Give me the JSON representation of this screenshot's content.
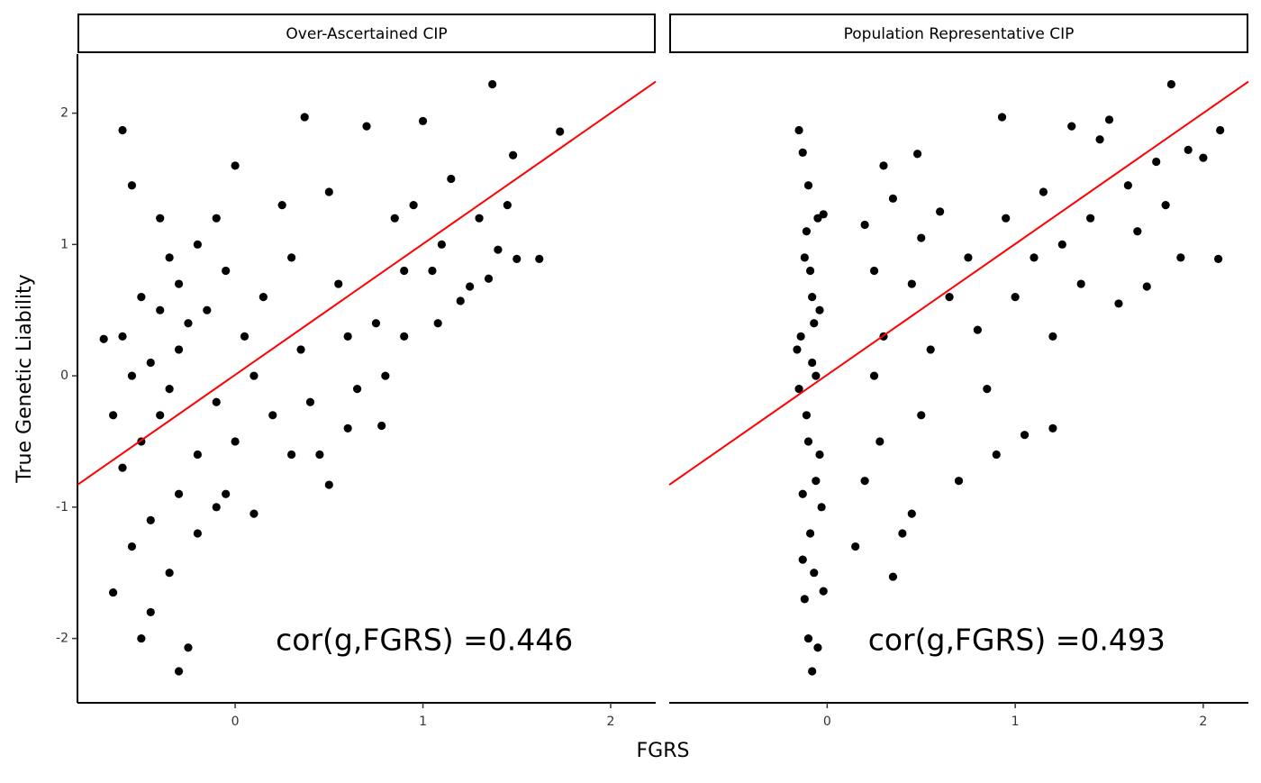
{
  "chart_data": {
    "type": "scatter",
    "xlabel": "FGRS",
    "ylabel": "True Genetic Liability",
    "xlim": [
      -0.84,
      2.24
    ],
    "ylim": [
      -2.49,
      2.45
    ],
    "xticks": [
      0,
      1,
      2
    ],
    "yticks": [
      -2,
      -1,
      0,
      1,
      2
    ],
    "color": "#000000",
    "line_color": "#ff0000",
    "facets": [
      {
        "title": "Over-Ascertained CIP",
        "annotation": "cor(g,FGRS) =0.446",
        "fit": {
          "x": [
            -0.84,
            2.24
          ],
          "y": [
            -0.83,
            2.24
          ]
        },
        "x": [
          -0.65,
          -0.6,
          -0.5,
          -0.3,
          -0.25,
          -0.45,
          -0.55,
          -0.4,
          -0.35,
          -0.5,
          -0.6,
          -0.7,
          -0.45,
          -0.35,
          -0.3,
          -0.4,
          -0.5,
          -0.2,
          -0.25,
          -0.15,
          -0.1,
          -0.3,
          -0.45,
          -0.55,
          -0.35,
          -0.2,
          -0.1,
          -0.6,
          -0.65,
          -0.55,
          -0.4,
          -0.3,
          -0.2,
          -0.1,
          0.0,
          -0.05,
          0.05,
          0.1,
          0.0,
          -0.05,
          0.1,
          0.2,
          0.15,
          0.25,
          0.3,
          0.35,
          0.4,
          0.45,
          0.5,
          0.37,
          0.5,
          0.55,
          0.6,
          0.65,
          0.7,
          0.75,
          0.8,
          0.85,
          0.9,
          0.78,
          0.95,
          1.0,
          1.05,
          1.1,
          1.15,
          1.2,
          1.25,
          1.3,
          1.35,
          1.37,
          1.4,
          1.45,
          1.5,
          1.62,
          1.73,
          1.48,
          1.08,
          0.9,
          0.6,
          0.3
        ],
        "y": [
          -1.65,
          1.87,
          -2.0,
          -2.25,
          -2.07,
          -1.8,
          1.45,
          1.2,
          0.9,
          0.6,
          0.3,
          0.28,
          0.1,
          -0.1,
          0.2,
          -0.3,
          -0.5,
          -0.6,
          0.4,
          0.5,
          -0.2,
          -0.9,
          -1.1,
          -1.3,
          -1.5,
          -1.2,
          -1.0,
          -0.7,
          -0.3,
          0.0,
          0.5,
          0.7,
          1.0,
          1.2,
          1.6,
          0.8,
          0.3,
          0.0,
          -0.5,
          -0.9,
          -1.05,
          -0.3,
          0.6,
          1.3,
          0.9,
          0.2,
          -0.2,
          -0.6,
          -0.83,
          1.97,
          1.4,
          0.7,
          0.3,
          -0.1,
          1.9,
          0.4,
          0.0,
          1.2,
          0.8,
          -0.38,
          1.3,
          1.94,
          0.8,
          1.0,
          1.5,
          0.57,
          0.68,
          1.2,
          0.74,
          2.22,
          0.96,
          1.3,
          0.89,
          0.89,
          1.86,
          1.68,
          0.4,
          0.3,
          -0.4,
          -0.6
        ]
      },
      {
        "title": "Population Representative CIP",
        "annotation": "cor(g,FGRS) =0.493",
        "fit": {
          "x": [
            -0.84,
            2.24
          ],
          "y": [
            -0.83,
            2.24
          ]
        },
        "x": [
          -0.15,
          -0.13,
          -0.1,
          -0.05,
          -0.12,
          -0.08,
          -0.14,
          -0.06,
          -0.11,
          -0.04,
          -0.13,
          -0.09,
          -0.07,
          -0.12,
          -0.1,
          -0.08,
          -0.05,
          -0.02,
          -0.03,
          -0.15,
          -0.16,
          -0.04,
          -0.09,
          -0.11,
          -0.07,
          -0.1,
          -0.06,
          -0.13,
          -0.02,
          -0.08,
          0.2,
          0.3,
          0.35,
          0.25,
          0.3,
          0.25,
          0.28,
          0.2,
          0.15,
          0.35,
          0.4,
          0.45,
          0.5,
          0.55,
          0.45,
          0.5,
          0.48,
          0.6,
          0.65,
          0.7,
          0.75,
          0.8,
          0.85,
          0.9,
          0.93,
          0.95,
          1.0,
          1.05,
          1.1,
          1.15,
          1.2,
          1.25,
          1.3,
          1.35,
          1.4,
          1.45,
          1.5,
          1.55,
          1.6,
          1.65,
          1.7,
          1.75,
          1.8,
          1.83,
          1.88,
          1.92,
          2.0,
          2.08,
          2.09,
          1.2
        ],
        "y": [
          1.87,
          1.7,
          1.45,
          1.2,
          0.9,
          0.6,
          0.3,
          0.0,
          -0.3,
          -0.6,
          -0.9,
          -1.2,
          -1.5,
          -1.7,
          -2.0,
          -2.25,
          -2.07,
          -1.64,
          -1.0,
          -0.1,
          0.2,
          0.5,
          0.8,
          1.1,
          0.4,
          -0.5,
          -0.8,
          -1.4,
          1.23,
          0.1,
          1.15,
          1.6,
          1.35,
          0.8,
          0.3,
          0.0,
          -0.5,
          -0.8,
          -1.3,
          -1.53,
          -1.2,
          -1.05,
          -0.3,
          0.2,
          0.7,
          1.05,
          1.69,
          1.25,
          0.6,
          -0.8,
          0.9,
          0.35,
          -0.1,
          -0.6,
          1.97,
          1.2,
          0.6,
          -0.45,
          0.9,
          1.4,
          0.3,
          1.0,
          1.9,
          0.7,
          1.2,
          1.8,
          1.95,
          0.55,
          1.45,
          1.1,
          0.68,
          1.63,
          1.3,
          2.22,
          0.9,
          1.72,
          1.66,
          0.89,
          1.87,
          -0.4
        ]
      }
    ]
  }
}
